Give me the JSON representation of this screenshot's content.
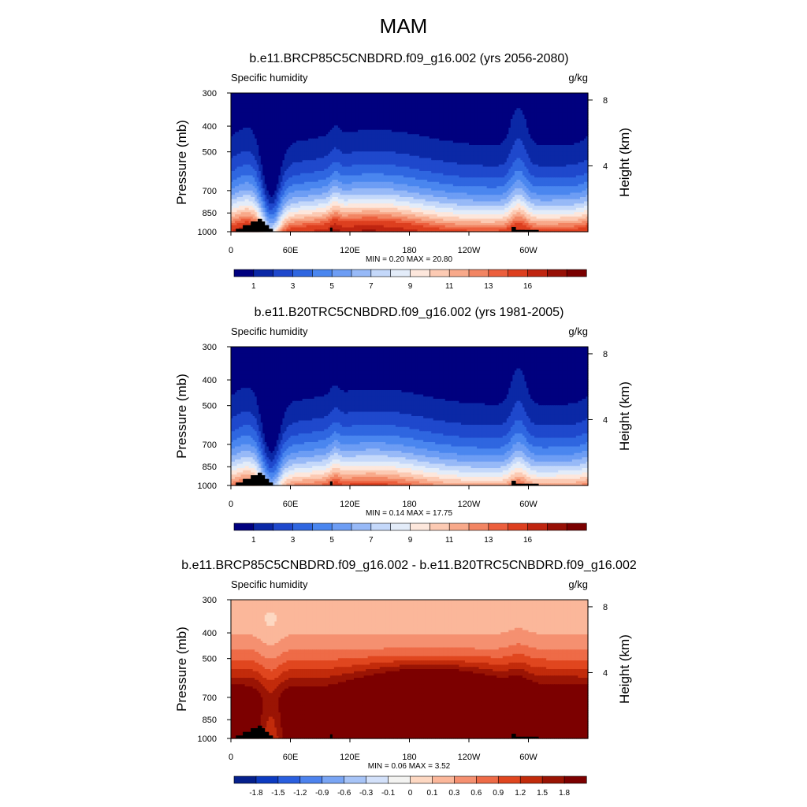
{
  "title": "MAM",
  "colors": {
    "abs_scale": [
      "#00007f",
      "#0b28a6",
      "#1f48cc",
      "#2f66e0",
      "#4a86ef",
      "#6d9df4",
      "#97b9f7",
      "#c4d8fa",
      "#e3ecf9",
      "#fde7dc",
      "#fccab3",
      "#f8a98a",
      "#f28563",
      "#ec5f3d",
      "#dd3f1f",
      "#bf2510",
      "#971006",
      "#7a0000"
    ],
    "diff_scale": [
      "#05208c",
      "#0d3bc1",
      "#2a5fdf",
      "#4d83ee",
      "#79a5f4",
      "#a7c4f7",
      "#d3e1fa",
      "#f3f3f1",
      "#fdd8c2",
      "#fbb79a",
      "#f59070",
      "#ee6b47",
      "#e0461f",
      "#c22b0b",
      "#9a1404",
      "#7c0000"
    ],
    "terrain": "#000000"
  },
  "chart_data": [
    {
      "type": "heatmap",
      "title": "b.e11.BRCP85C5CNBDRD.f09_g16.002 (yrs 2056-2080)",
      "left_label": "Specific humidity",
      "units": "g/kg",
      "ylabel": "Pressure (mb)",
      "ylabel_right": "Height (km)",
      "yticks": [
        "300",
        "400",
        "500",
        "700",
        "850",
        "1000"
      ],
      "ytick_values": [
        300,
        400,
        500,
        700,
        850,
        1000
      ],
      "yticks_right": [
        "8",
        "4"
      ],
      "yticks_right_values": [
        8,
        4
      ],
      "xticks": [
        "0",
        "60E",
        "120E",
        "180",
        "120W",
        "60W"
      ],
      "xtick_values": [
        0,
        60,
        120,
        180,
        240,
        300
      ],
      "xlim": [
        0,
        360
      ],
      "ylim": [
        1000,
        300
      ],
      "stats": "MIN =   0.20  MAX =  20.80",
      "min": 0.2,
      "max": 20.8,
      "colorbar_labels": [
        "1",
        "3",
        "5",
        "7",
        "9",
        "11",
        "13",
        "16"
      ],
      "field": "future"
    },
    {
      "type": "heatmap",
      "title": "b.e11.B20TRC5CNBDRD.f09_g16.002 (yrs 1981-2005)",
      "left_label": "Specific humidity",
      "units": "g/kg",
      "ylabel": "Pressure (mb)",
      "ylabel_right": "Height (km)",
      "yticks": [
        "300",
        "400",
        "500",
        "700",
        "850",
        "1000"
      ],
      "ytick_values": [
        300,
        400,
        500,
        700,
        850,
        1000
      ],
      "yticks_right": [
        "8",
        "4"
      ],
      "yticks_right_values": [
        8,
        4
      ],
      "xticks": [
        "0",
        "60E",
        "120E",
        "180",
        "120W",
        "60W"
      ],
      "xtick_values": [
        0,
        60,
        120,
        180,
        240,
        300
      ],
      "xlim": [
        0,
        360
      ],
      "ylim": [
        1000,
        300
      ],
      "stats": "MIN =   0.14  MAX =  17.75",
      "min": 0.14,
      "max": 17.75,
      "colorbar_labels": [
        "1",
        "3",
        "5",
        "7",
        "9",
        "11",
        "13",
        "16"
      ],
      "field": "present"
    },
    {
      "type": "heatmap",
      "title": "b.e11.BRCP85C5CNBDRD.f09_g16.002 - b.e11.B20TRC5CNBDRD.f09_g16.002",
      "left_label": "Specific humidity",
      "units": "g/kg",
      "ylabel": "Pressure (mb)",
      "ylabel_right": "Height (km)",
      "yticks": [
        "300",
        "400",
        "500",
        "700",
        "850",
        "1000"
      ],
      "ytick_values": [
        300,
        400,
        500,
        700,
        850,
        1000
      ],
      "yticks_right": [
        "8",
        "4"
      ],
      "yticks_right_values": [
        8,
        4
      ],
      "xticks": [
        "0",
        "60E",
        "120E",
        "180",
        "120W",
        "60W"
      ],
      "xtick_values": [
        0,
        60,
        120,
        180,
        240,
        300
      ],
      "xlim": [
        0,
        360
      ],
      "ylim": [
        1000,
        300
      ],
      "stats": "MIN =   0.06  MAX =   3.52",
      "min": 0.06,
      "max": 3.52,
      "colorbar_labels": [
        "-1.8",
        "-1.5",
        "-1.2",
        "-0.9",
        "-0.6",
        "-0.3",
        "-0.1",
        "0",
        "0.1",
        "0.3",
        "0.6",
        "0.9",
        "1.2",
        "1.5",
        "1.8"
      ],
      "field": "difference"
    }
  ]
}
